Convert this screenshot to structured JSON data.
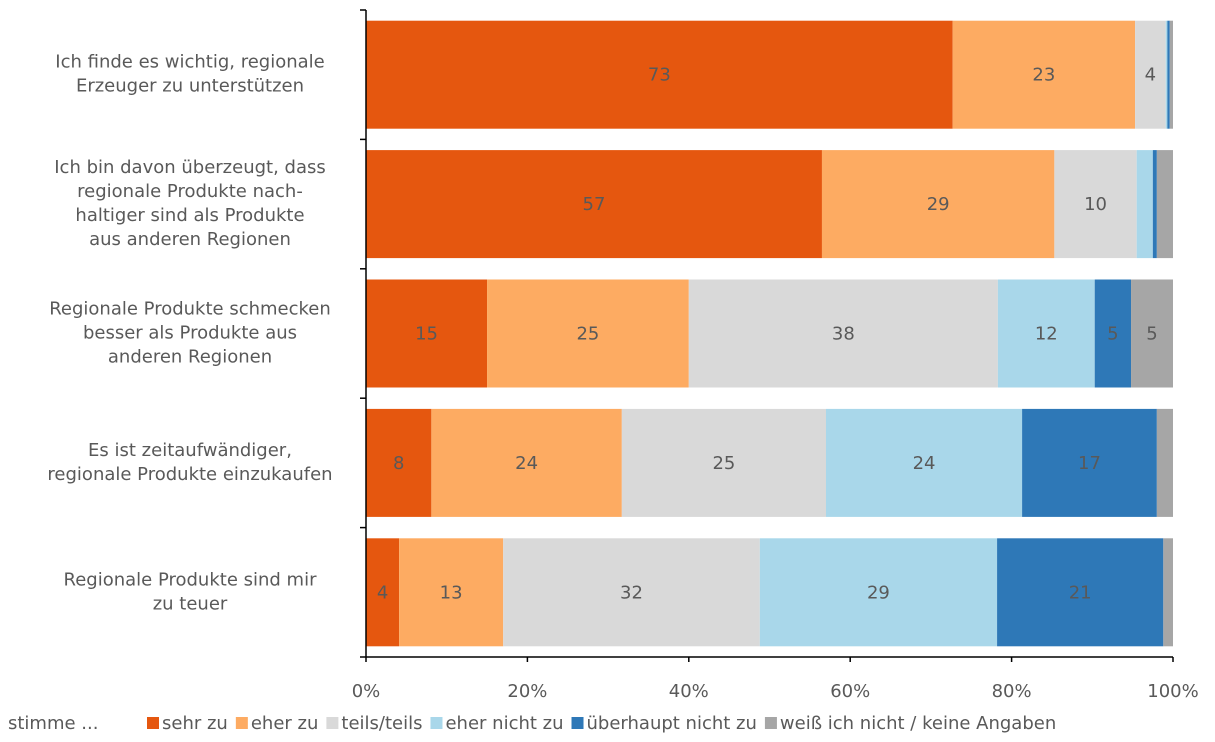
{
  "chart_data": {
    "type": "stacked_barh",
    "categories": [
      [
        "Ich finde es wichtig, regionale",
        "Erzeuger zu unterstützen"
      ],
      [
        "Ich bin davon überzeugt, dass",
        "regionale Produkte nach-",
        "haltiger sind als Produkte",
        "aus anderen Regionen"
      ],
      [
        "Regionale Produkte schmecken",
        "besser als Produkte aus",
        "anderen Regionen"
      ],
      [
        "Es ist zeitaufwändiger,",
        "regionale Produkte einzukaufen"
      ],
      [
        "Regionale Produkte sind mir",
        "zu teuer"
      ]
    ],
    "series": [
      {
        "name": "sehr zu",
        "color": "#e5570f",
        "values": [
          72.7,
          56.5,
          15.0,
          8.1,
          4.1
        ],
        "value_labels": [
          "73",
          "57",
          "15",
          "8",
          "4"
        ]
      },
      {
        "name": "eher zu",
        "color": "#fdab62",
        "values": [
          22.6,
          28.8,
          25.0,
          23.6,
          12.9
        ],
        "value_labels": [
          "23",
          "29",
          "25",
          "24",
          "13"
        ]
      },
      {
        "name": "teils/teils",
        "color": "#d9d9d9",
        "values": [
          3.8,
          10.2,
          38.3,
          25.3,
          31.8
        ],
        "value_labels": [
          "4",
          "10",
          "38",
          "25",
          "32"
        ]
      },
      {
        "name": "eher nicht zu",
        "color": "#a9d7ea",
        "values": [
          0.2,
          2.0,
          12.0,
          24.3,
          29.4
        ],
        "value_labels": [
          null,
          null,
          "12",
          "24",
          "29"
        ]
      },
      {
        "name": "überhaupt nicht zu",
        "color": "#2e78b7",
        "values": [
          0.3,
          0.5,
          4.5,
          16.7,
          20.6
        ],
        "value_labels": [
          null,
          null,
          "5",
          "17",
          "21"
        ]
      },
      {
        "name": "weiß ich nicht / keine Angaben",
        "color": "#a6a6a6",
        "values": [
          0.4,
          2.0,
          5.2,
          2.0,
          1.2
        ],
        "value_labels": [
          null,
          null,
          "5",
          null,
          null
        ]
      }
    ],
    "legend_title": "stimme ...",
    "xlim": [
      0,
      100
    ],
    "xticks": [
      {
        "value": 0,
        "label": "0%"
      },
      {
        "value": 20,
        "label": "20%"
      },
      {
        "value": 40,
        "label": "40%"
      },
      {
        "value": 60,
        "label": "60%"
      },
      {
        "value": 80,
        "label": "80%"
      },
      {
        "value": 100,
        "label": "100%"
      }
    ],
    "legend": "bottom"
  }
}
